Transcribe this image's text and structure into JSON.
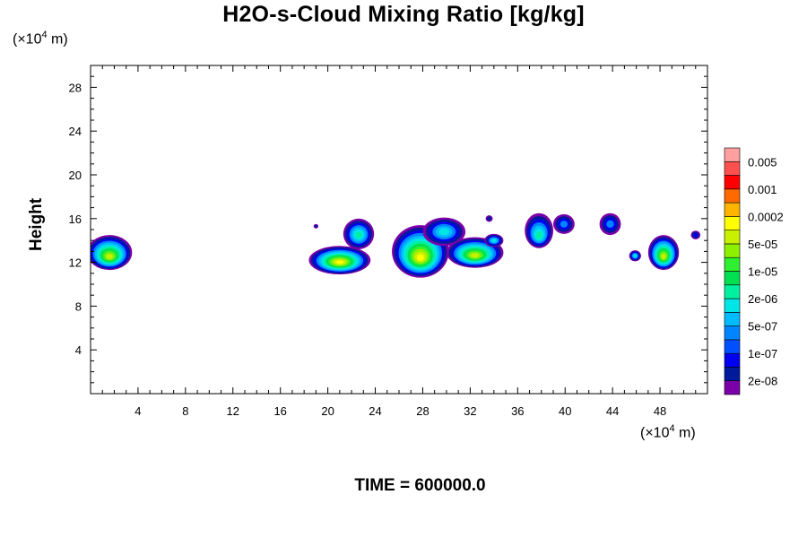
{
  "title": "H2O-s-Cloud Mixing Ratio [kg/kg]",
  "unit_label": {
    "prefix": "(×10",
    "exponent": "4",
    "suffix": " m)"
  },
  "time_label": "TIME = 600000.0",
  "chart_data": {
    "type": "heatmap",
    "title": "H2O-s-Cloud Mixing Ratio [kg/kg]",
    "xlabel": "",
    "ylabel": "Height",
    "x_unit": "(×10^4 m)",
    "y_unit": "(×10^4 m)",
    "xlim": [
      0,
      52
    ],
    "ylim": [
      0,
      30
    ],
    "xticks": [
      4,
      8,
      12,
      16,
      20,
      24,
      28,
      32,
      36,
      40,
      44,
      48
    ],
    "yticks": [
      4,
      8,
      12,
      16,
      20,
      24,
      28
    ],
    "grid": false,
    "colorbar": {
      "colors": [
        "#7a00a8",
        "#001a9c",
        "#0000f0",
        "#0050ff",
        "#0085ff",
        "#00bbff",
        "#00e6e6",
        "#00f0a0",
        "#00e050",
        "#30ee30",
        "#8cf000",
        "#c8f000",
        "#ffff00",
        "#ffb400",
        "#ff6a00",
        "#ff0000",
        "#ff5050",
        "#ffa0a0"
      ],
      "tick_labels": [
        "2e-08",
        "1e-07",
        "5e-07",
        "2e-06",
        "1e-05",
        "5e-05",
        "0.0002",
        "0.001",
        "0.005"
      ]
    },
    "cloud_patches": [
      {
        "x": [
          0,
          3.5
        ],
        "y": [
          11.5,
          14.5
        ],
        "peak": "5e-05"
      },
      {
        "x": [
          18.5,
          24.5
        ],
        "y": [
          11,
          16
        ],
        "peak": "0.0002"
      },
      {
        "x": [
          25.5,
          35
        ],
        "y": [
          11,
          16.5
        ],
        "peak": "0.0002"
      },
      {
        "x": [
          36.5,
          41
        ],
        "y": [
          13,
          16.5
        ],
        "peak": "5e-06"
      },
      {
        "x": [
          43,
          45
        ],
        "y": [
          14.5,
          16.5
        ],
        "peak": "5e-07"
      },
      {
        "x": [
          45.5,
          46.5
        ],
        "y": [
          12,
          13
        ],
        "peak": "1e-05"
      },
      {
        "x": [
          47,
          49.5
        ],
        "y": [
          11,
          14.5
        ],
        "peak": "5e-05"
      },
      {
        "x": [
          50.5,
          51
        ],
        "y": [
          14,
          15
        ],
        "peak": "2e-06"
      }
    ]
  }
}
